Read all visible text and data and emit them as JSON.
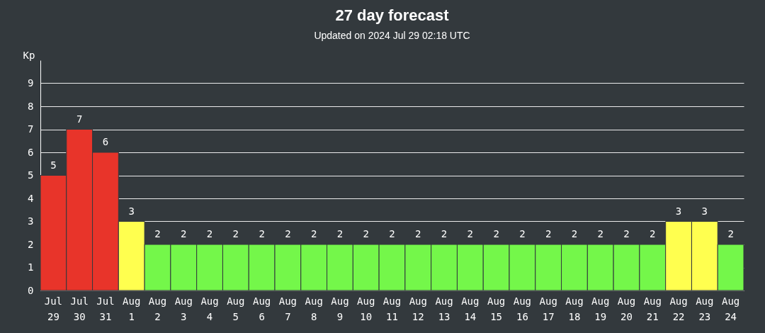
{
  "chart_data": {
    "type": "bar",
    "title": "27 day forecast",
    "subtitle": "Updated on 2024 Jul 29 02:18 UTC",
    "ylabel": "Kp",
    "categories": [
      "Jul 29",
      "Jul 30",
      "Jul 31",
      "Aug 1",
      "Aug 2",
      "Aug 3",
      "Aug 4",
      "Aug 5",
      "Aug 6",
      "Aug 7",
      "Aug 8",
      "Aug 9",
      "Aug 10",
      "Aug 11",
      "Aug 12",
      "Aug 13",
      "Aug 14",
      "Aug 15",
      "Aug 16",
      "Aug 17",
      "Aug 18",
      "Aug 19",
      "Aug 20",
      "Aug 21",
      "Aug 22",
      "Aug 23",
      "Aug 24"
    ],
    "values": [
      5,
      7,
      6,
      3,
      2,
      2,
      2,
      2,
      2,
      2,
      2,
      2,
      2,
      2,
      2,
      2,
      2,
      2,
      2,
      2,
      2,
      2,
      2,
      2,
      3,
      3,
      2
    ],
    "colors": [
      "#e8342a",
      "#e8342a",
      "#e8342a",
      "#ffff4f",
      "#74f74a",
      "#74f74a",
      "#74f74a",
      "#74f74a",
      "#74f74a",
      "#74f74a",
      "#74f74a",
      "#74f74a",
      "#74f74a",
      "#74f74a",
      "#74f74a",
      "#74f74a",
      "#74f74a",
      "#74f74a",
      "#74f74a",
      "#74f74a",
      "#74f74a",
      "#74f74a",
      "#74f74a",
      "#74f74a",
      "#ffff4f",
      "#ffff4f",
      "#74f74a"
    ],
    "ylim": [
      0,
      10
    ],
    "yticks": [
      0,
      1,
      2,
      3,
      4,
      5,
      6,
      7,
      8,
      9
    ],
    "grid": "y",
    "data_labels": true
  }
}
